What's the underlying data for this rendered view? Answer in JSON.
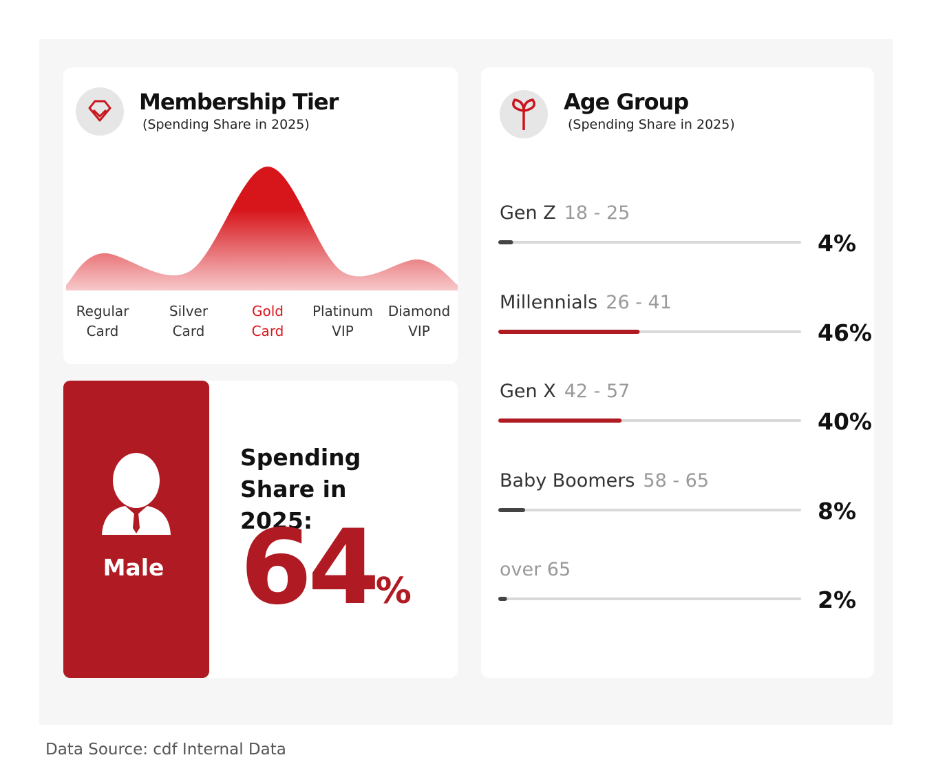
{
  "membership": {
    "chart_data": {
      "type": "area",
      "title": "Membership Tier",
      "subtitle": "(Spending Share in 2025)",
      "categories": [
        "Regular Card",
        "Silver Card",
        "Gold Card",
        "Platinum VIP",
        "Diamond VIP"
      ],
      "values": [
        6,
        3,
        20,
        3,
        5
      ],
      "color": "#d7161c",
      "highlight": 2
    }
  },
  "gender": {
    "name": "Male",
    "label": "Spending Share in 2025:",
    "value": 64,
    "unit": "%",
    "color": "#b01a22"
  },
  "age": {
    "chart_data": {
      "type": "progress",
      "title": "Age Group",
      "subtitle": "(Spending Share in 2025)",
      "xlim": [
        0,
        100
      ],
      "items": [
        {
          "name": "Gen Z",
          "range": "18 - 25",
          "value": 4,
          "value_label": "4%",
          "color": "#444444"
        },
        {
          "name": "Millennials",
          "range": "26 - 41",
          "value": 46,
          "value_label": "46%",
          "color": "#b01a22"
        },
        {
          "name": "Gen X",
          "range": "42 - 57",
          "value": 40,
          "value_label": "40%",
          "color": "#b01a22"
        },
        {
          "name": "Baby Boomers",
          "range": "58 - 65",
          "value": 8,
          "value_label": "8%",
          "color": "#444444"
        },
        {
          "name": "over 65",
          "value": 2,
          "value_label": "2%",
          "color": "#444444"
        }
      ]
    }
  },
  "footer": "Data Source: cdf Internal Data"
}
